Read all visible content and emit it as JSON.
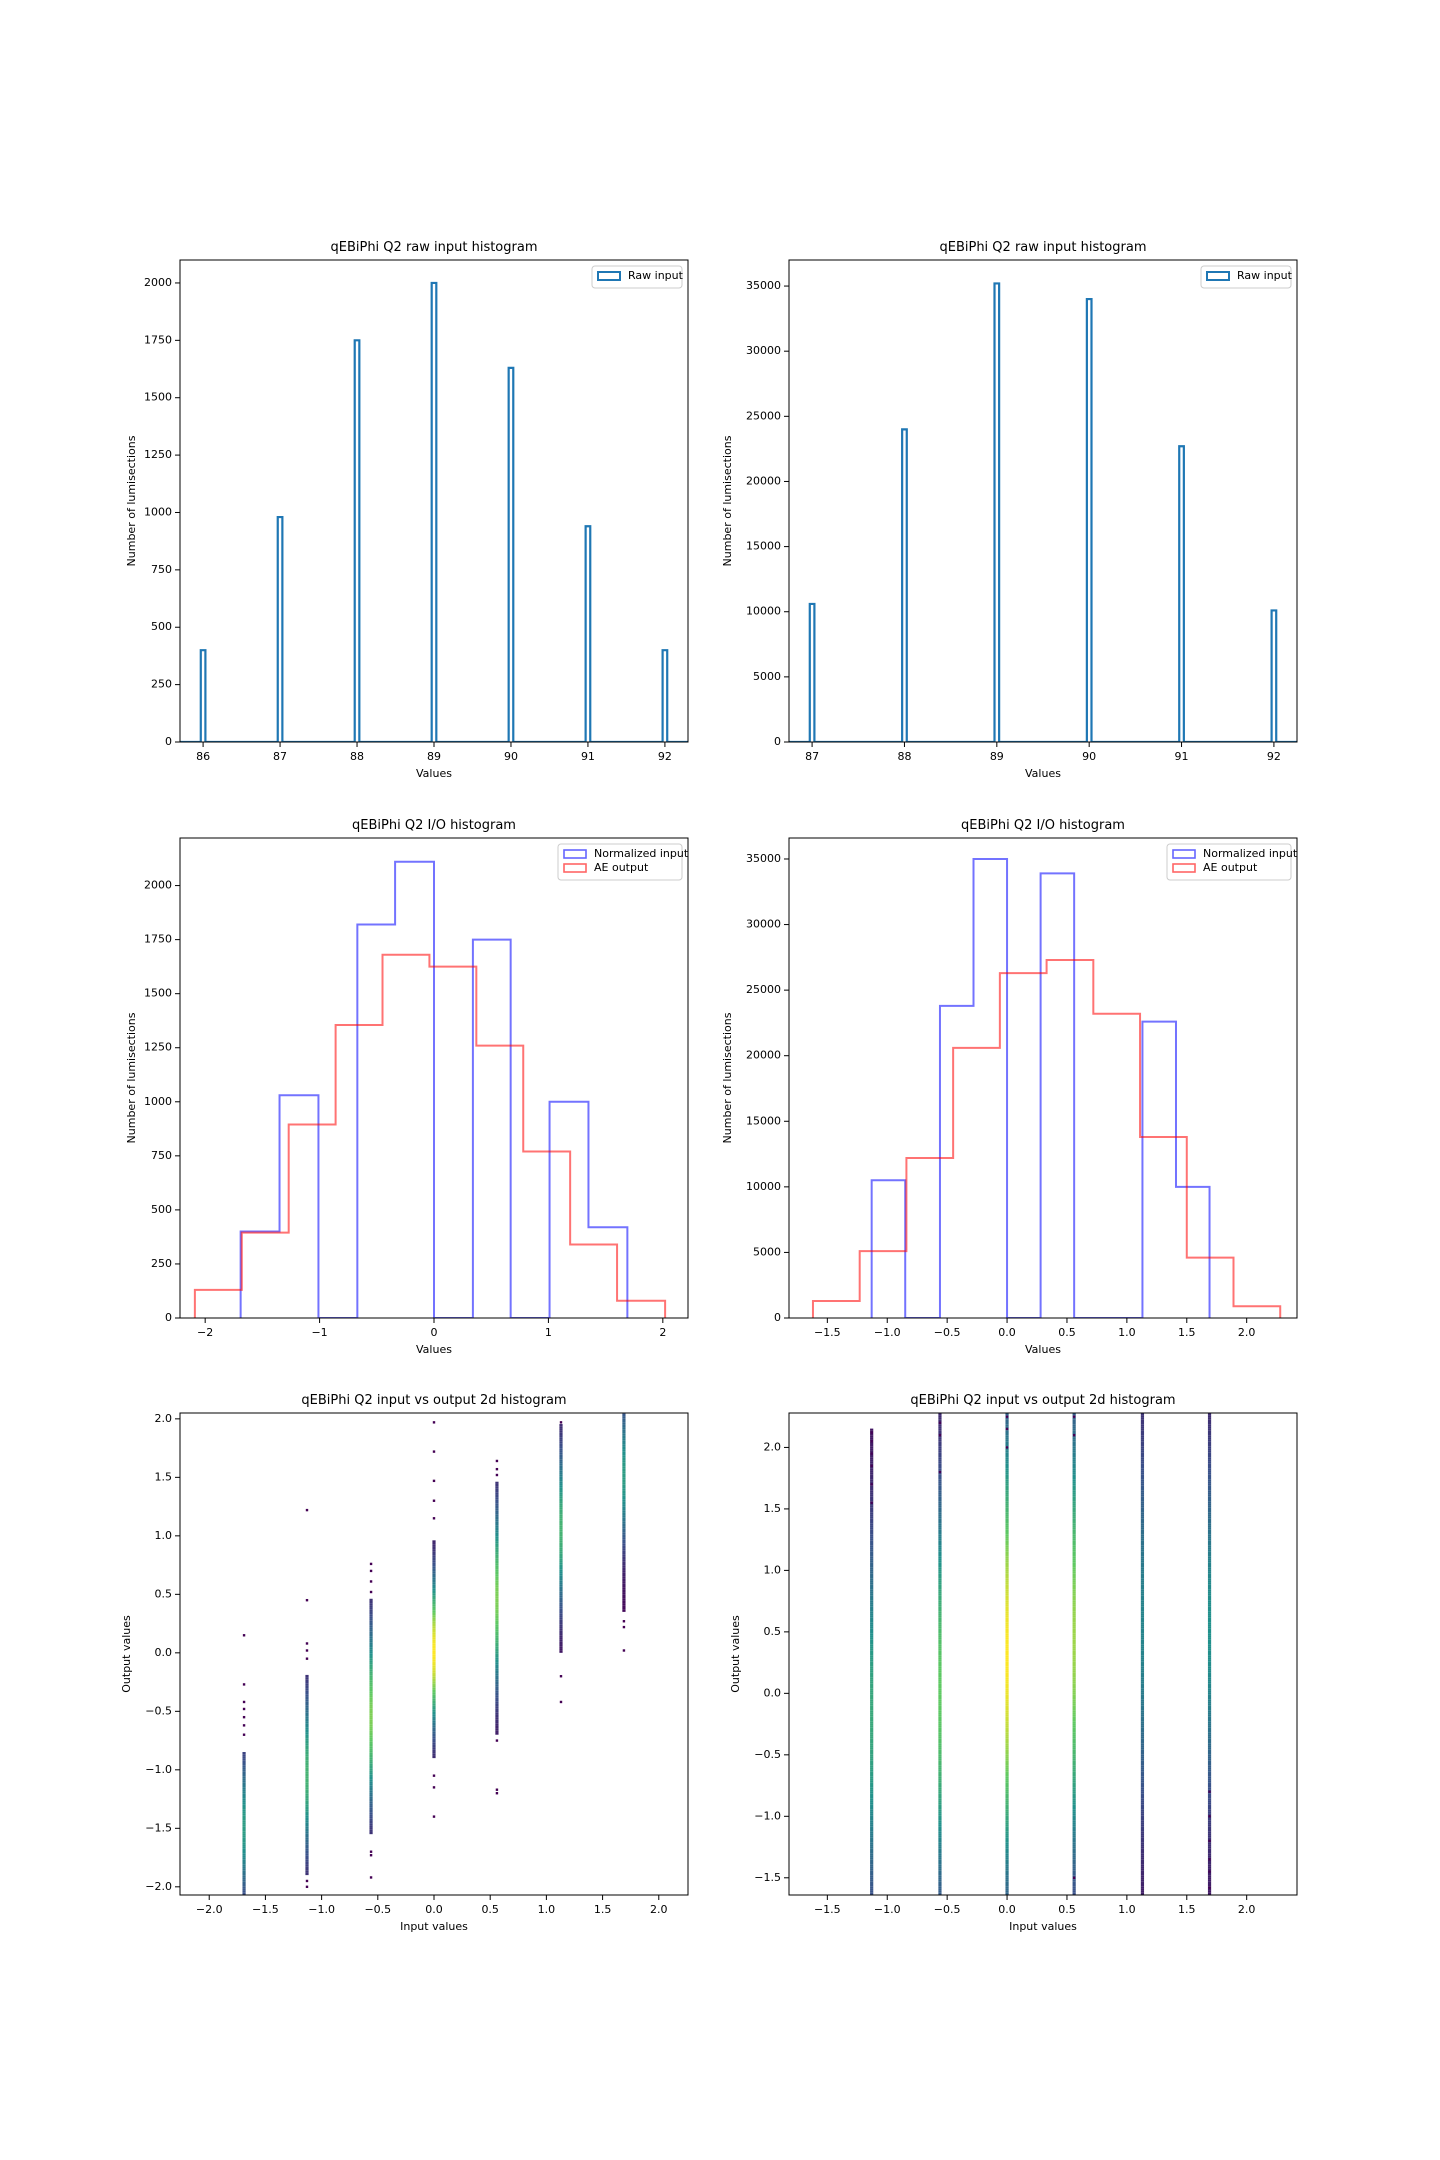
{
  "chart_data": [
    {
      "id": "raw-left",
      "type": "histogram",
      "title": "qEBiPhi Q2 raw input histogram",
      "xlabel": "Values",
      "ylabel": "Number of lumisections",
      "xlim": [
        85.7,
        92.3
      ],
      "ylim": [
        0,
        2100
      ],
      "xticks": [
        86,
        87,
        88,
        89,
        90,
        91,
        92
      ],
      "xtick_labels": [
        "86",
        "87",
        "88",
        "89",
        "90",
        "91",
        "92"
      ],
      "yticks": [
        0,
        250,
        500,
        750,
        1000,
        1250,
        1500,
        1750,
        2000
      ],
      "ytick_labels": [
        "0",
        "250",
        "500",
        "750",
        "1000",
        "1250",
        "1500",
        "1750",
        "2000"
      ],
      "legend_position": "top-right",
      "series": [
        {
          "name": "Raw input",
          "color": "#1f77b4",
          "style": "spikes",
          "bin_width": 0.06,
          "x": [
            86,
            87,
            88,
            89,
            90,
            91,
            92
          ],
          "values": [
            400,
            980,
            1750,
            2000,
            1630,
            940,
            400
          ]
        }
      ]
    },
    {
      "id": "raw-right",
      "type": "histogram",
      "title": "qEBiPhi Q2 raw input histogram",
      "xlabel": "Values",
      "ylabel": "Number of lumisections",
      "xlim": [
        86.75,
        92.25
      ],
      "ylim": [
        0,
        37000
      ],
      "xticks": [
        87,
        88,
        89,
        90,
        91,
        92
      ],
      "xtick_labels": [
        "87",
        "88",
        "89",
        "90",
        "91",
        "92"
      ],
      "yticks": [
        0,
        5000,
        10000,
        15000,
        20000,
        25000,
        30000,
        35000
      ],
      "ytick_labels": [
        "0",
        "5000",
        "10000",
        "15000",
        "20000",
        "25000",
        "30000",
        "35000"
      ],
      "legend_position": "top-right",
      "series": [
        {
          "name": "Raw input",
          "color": "#1f77b4",
          "style": "spikes",
          "bin_width": 0.05,
          "x": [
            87,
            88,
            89,
            90,
            91,
            92
          ],
          "values": [
            10600,
            24000,
            35200,
            34000,
            22700,
            10100
          ]
        }
      ]
    },
    {
      "id": "io-left",
      "type": "histogram",
      "title": "qEBiPhi Q2 I/O histogram",
      "xlabel": "Values",
      "ylabel": "Number of lumisections",
      "xlim": [
        -2.22,
        2.22
      ],
      "ylim": [
        0,
        2220
      ],
      "xticks": [
        -2,
        -1,
        0,
        1,
        2
      ],
      "xtick_labels": [
        "−2",
        "−1",
        "0",
        "1",
        "2"
      ],
      "yticks": [
        0,
        250,
        500,
        750,
        1000,
        1250,
        1500,
        1750,
        2000
      ],
      "ytick_labels": [
        "0",
        "250",
        "500",
        "750",
        "1000",
        "1250",
        "1500",
        "1750",
        "2000"
      ],
      "legend_position": "top-right",
      "series": [
        {
          "name": "Normalized input",
          "color": "#0000ff",
          "style": "step",
          "edges": [
            -1.69,
            -1.35,
            -1.01,
            -0.67,
            -0.34,
            0.0,
            0.34,
            0.67,
            1.01,
            1.35,
            1.69
          ],
          "values": [
            400,
            1030,
            0,
            1820,
            2110,
            0,
            1750,
            0,
            1000,
            420
          ]
        },
        {
          "name": "AE output",
          "color": "#ff0000",
          "style": "step",
          "edges": [
            -2.09,
            -1.68,
            -1.27,
            -0.86,
            -0.45,
            -0.04,
            0.37,
            0.78,
            1.19,
            1.6,
            2.02
          ],
          "values": [
            130,
            395,
            895,
            1355,
            1680,
            1625,
            1260,
            770,
            340,
            80
          ]
        }
      ]
    },
    {
      "id": "io-right",
      "type": "histogram",
      "title": "qEBiPhi Q2 I/O histogram",
      "xlabel": "Values",
      "ylabel": "Number of lumisections",
      "xlim": [
        -1.82,
        2.42
      ],
      "ylim": [
        0,
        36600
      ],
      "xticks": [
        -1.5,
        -1.0,
        -0.5,
        0.0,
        0.5,
        1.0,
        1.5,
        2.0
      ],
      "xtick_labels": [
        "−1.5",
        "−1.0",
        "−0.5",
        "0.0",
        "0.5",
        "1.0",
        "1.5",
        "2.0"
      ],
      "yticks": [
        0,
        5000,
        10000,
        15000,
        20000,
        25000,
        30000,
        35000
      ],
      "ytick_labels": [
        "0",
        "5000",
        "10000",
        "15000",
        "20000",
        "25000",
        "30000",
        "35000"
      ],
      "legend_position": "top-right",
      "series": [
        {
          "name": "Normalized input",
          "color": "#0000ff",
          "style": "step",
          "edges": [
            -1.13,
            -0.85,
            -0.56,
            -0.28,
            0.0,
            0.28,
            0.56,
            0.85,
            1.13,
            1.41,
            1.69
          ],
          "values": [
            10500,
            0,
            23800,
            35000,
            0,
            33900,
            0,
            0,
            22600,
            10000
          ]
        },
        {
          "name": "AE output",
          "color": "#ff0000",
          "style": "step",
          "edges": [
            -1.62,
            -1.23,
            -0.84,
            -0.45,
            -0.06,
            0.33,
            0.72,
            1.11,
            1.5,
            1.89,
            2.28
          ],
          "values": [
            1300,
            5100,
            12200,
            20600,
            26300,
            27300,
            23200,
            13800,
            4600,
            900
          ]
        }
      ]
    },
    {
      "id": "h2d-left",
      "type": "heatmap",
      "title": "qEBiPhi Q2 input vs output 2d histogram",
      "xlabel": "Input values",
      "ylabel": "Output values",
      "xlim": [
        -2.26,
        2.26
      ],
      "ylim": [
        -2.07,
        2.05
      ],
      "xticks": [
        -2.0,
        -1.5,
        -1.0,
        -0.5,
        0.0,
        0.5,
        1.0,
        1.5,
        2.0
      ],
      "xtick_labels": [
        "−2.0",
        "−1.5",
        "−1.0",
        "−0.5",
        "0.0",
        "0.5",
        "1.0",
        "1.5",
        "2.0"
      ],
      "yticks": [
        -2.0,
        -1.5,
        -1.0,
        -0.5,
        0.0,
        0.5,
        1.0,
        1.5,
        2.0
      ],
      "ytick_labels": [
        "−2.0",
        "−1.5",
        "−1.0",
        "−0.5",
        "0.0",
        "0.5",
        "1.0",
        "1.5",
        "2.0"
      ],
      "colormap": [
        "#440154",
        "#3b528b",
        "#21918c",
        "#5ec962",
        "#fde725"
      ],
      "columns": [
        {
          "x": -1.69,
          "ymin": -2.07,
          "ymax": -0.85,
          "ycenter": -1.5,
          "spread": 0.45,
          "peak": 0.55,
          "outliers": [
            0.15,
            -0.27,
            -0.42,
            -0.48,
            -0.55,
            -0.62,
            -0.7
          ]
        },
        {
          "x": -1.13,
          "ymin": -1.9,
          "ymax": -0.2,
          "ycenter": -1.05,
          "spread": 0.5,
          "peak": 0.65,
          "outliers": [
            1.22,
            0.45,
            0.08,
            0.02,
            -0.05,
            -1.95,
            -2.0
          ]
        },
        {
          "x": -0.56,
          "ymin": -1.55,
          "ymax": 0.45,
          "ycenter": -0.55,
          "spread": 0.55,
          "peak": 0.8,
          "outliers": [
            0.76,
            0.7,
            0.61,
            0.52,
            -1.7,
            -1.73,
            -1.92
          ]
        },
        {
          "x": 0.0,
          "ymin": -0.9,
          "ymax": 0.95,
          "ycenter": 0.0,
          "spread": 0.45,
          "peak": 1.0,
          "outliers": [
            1.97,
            1.72,
            1.47,
            1.3,
            1.15,
            -1.05,
            -1.15,
            -1.4
          ]
        },
        {
          "x": 0.56,
          "ymin": -0.7,
          "ymax": 1.45,
          "ycenter": 0.45,
          "spread": 0.55,
          "peak": 0.8,
          "outliers": [
            1.64,
            1.57,
            1.52,
            -0.75,
            -1.17,
            -1.2
          ]
        },
        {
          "x": 1.13,
          "ymin": 0.0,
          "ymax": 1.95,
          "ycenter": 1.05,
          "spread": 0.5,
          "peak": 0.65,
          "outliers": [
            -0.2,
            -0.42,
            1.97
          ]
        },
        {
          "x": 1.69,
          "ymin": 0.35,
          "ymax": 2.05,
          "ycenter": 1.5,
          "spread": 0.45,
          "peak": 0.55,
          "outliers": [
            0.27,
            0.02,
            0.22
          ]
        }
      ]
    },
    {
      "id": "h2d-right",
      "type": "heatmap",
      "title": "qEBiPhi Q2 input vs output 2d histogram",
      "xlabel": "Input values",
      "ylabel": "Output values",
      "xlim": [
        -1.82,
        2.42
      ],
      "ylim": [
        -1.64,
        2.28
      ],
      "xticks": [
        -1.5,
        -1.0,
        -0.5,
        0.0,
        0.5,
        1.0,
        1.5,
        2.0
      ],
      "xtick_labels": [
        "−1.5",
        "−1.0",
        "−0.5",
        "0.0",
        "0.5",
        "1.0",
        "1.5",
        "2.0"
      ],
      "yticks": [
        -1.5,
        -1.0,
        -0.5,
        0.0,
        0.5,
        1.0,
        1.5,
        2.0
      ],
      "ytick_labels": [
        "−1.5",
        "−1.0",
        "−0.5",
        "0.0",
        "0.5",
        "1.0",
        "1.5",
        "2.0"
      ],
      "colormap": [
        "#440154",
        "#3b528b",
        "#21918c",
        "#5ec962",
        "#fde725"
      ],
      "columns": [
        {
          "x": -1.13,
          "ymin": -1.64,
          "ymax": 2.15,
          "ycenter": -0.2,
          "spread": 1.1,
          "peak": 0.6,
          "outliers": [
            2.12,
            2.05,
            1.95,
            1.85,
            1.7,
            1.55
          ]
        },
        {
          "x": -0.56,
          "ymin": -1.64,
          "ymax": 2.28,
          "ycenter": 0.0,
          "spread": 1.2,
          "peak": 0.75,
          "outliers": [
            2.2,
            2.1,
            1.8
          ]
        },
        {
          "x": 0.0,
          "ymin": -1.64,
          "ymax": 2.28,
          "ycenter": 0.3,
          "spread": 1.3,
          "peak": 1.0,
          "outliers": [
            2.25,
            2.15,
            2.0
          ]
        },
        {
          "x": 0.56,
          "ymin": -1.64,
          "ymax": 2.28,
          "ycenter": 0.4,
          "spread": 1.3,
          "peak": 0.85,
          "outliers": [
            2.25,
            2.1,
            -1.5
          ]
        },
        {
          "x": 1.13,
          "ymin": -1.64,
          "ymax": 2.28,
          "ycenter": 0.5,
          "spread": 1.2,
          "peak": 0.45,
          "outliers": []
        },
        {
          "x": 1.69,
          "ymin": -1.64,
          "ymax": 2.28,
          "ycenter": 0.5,
          "spread": 1.1,
          "peak": 0.5,
          "outliers": [
            -0.8,
            -1.0,
            -1.2,
            -1.35,
            -1.45,
            -1.58
          ]
        }
      ]
    }
  ]
}
